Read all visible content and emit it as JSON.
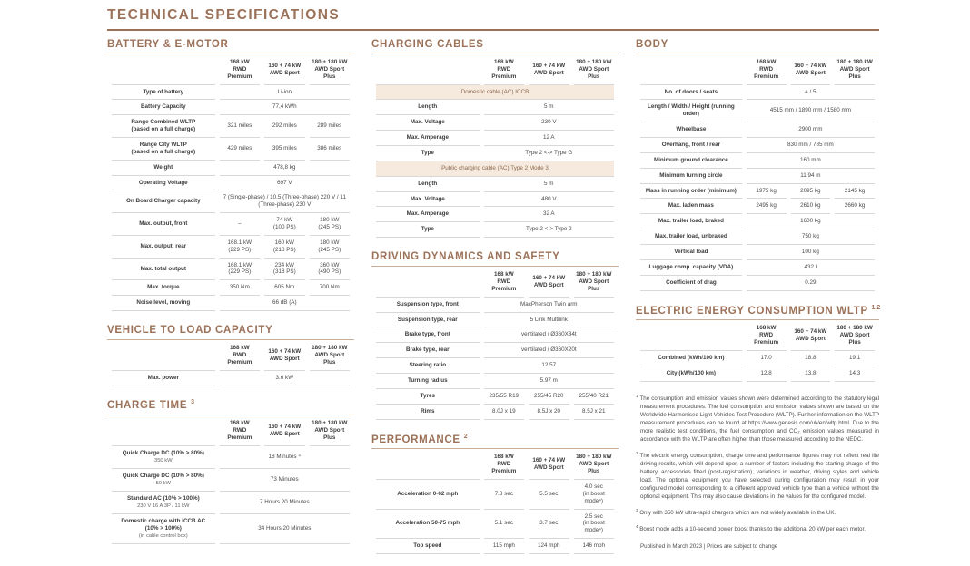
{
  "title": "TECHNICAL SPECIFICATIONS",
  "theme": {
    "accent": "#9b7259",
    "band_background": "#f6e9dd",
    "band_text": "#8c6a51",
    "row_line": "#d8d8d8"
  },
  "model_columns": [
    "168 kW\nRWD Premium",
    "160 + 74 kW\nAWD Sport",
    "180 + 180 kW\nAWD Sport Plus"
  ],
  "layout": {
    "columns": [
      [
        "battery",
        "vehicle_to_load",
        "charge_time"
      ],
      [
        "charging_cables",
        "driving_dynamics",
        "performance"
      ],
      [
        "body",
        "energy_consumption",
        "footnotes"
      ]
    ]
  },
  "sections": {
    "battery": {
      "id": "battery",
      "heading": "BATTERY & E-MOTOR",
      "show_header": true,
      "rows": [
        {
          "label": "Type of battery",
          "span": "Li-ion"
        },
        {
          "label": "Battery Capacity",
          "span": "77,4 kWh"
        },
        {
          "label": "Range Combined WLTP\n(based on a full charge)",
          "values": [
            "321 miles",
            "292 miles",
            "289 miles"
          ]
        },
        {
          "label": "Range City WLTP\n(based on a full charge)",
          "values": [
            "429 miles",
            "395 miles",
            "386 miles"
          ]
        },
        {
          "label": "Weight",
          "span": "478,8 kg"
        },
        {
          "label": "Operating Voltage",
          "span": "697 V"
        },
        {
          "label": "On Board Charger capacity",
          "span": "7 (Single-phase) / 10.5 (Three-phase) 220 V / 11 (Three-phase) 230 V"
        },
        {
          "label": "Max. output, front",
          "values": [
            "–",
            "74 kW\n(100 PS)",
            "180 kW\n(245 PS)"
          ]
        },
        {
          "label": "Max. output, rear",
          "values": [
            "168.1 kW\n(229 PS)",
            "160 kW\n(218 PS)",
            "180 kW\n(245 PS)"
          ]
        },
        {
          "label": "Max. total output",
          "values": [
            "168.1 kW\n(229 PS)",
            "234 kW\n(318 PS)",
            "360 kW\n(490 PS)"
          ]
        },
        {
          "label": "Max. torque",
          "values": [
            "350 Nm",
            "605 Nm",
            "700 Nm"
          ]
        },
        {
          "label": "Noise level, moving",
          "span": "66 dB (A)"
        }
      ]
    },
    "vehicle_to_load": {
      "id": "vehicle-to-load",
      "heading": "VEHICLE TO LOAD CAPACITY",
      "show_header": true,
      "rows": [
        {
          "label": "Max. power",
          "span": "3.6 kW"
        }
      ]
    },
    "charge_time": {
      "id": "charge-time",
      "heading": "CHARGE TIME",
      "heading_sup": "3",
      "show_header": true,
      "rows": [
        {
          "label": "Quick Charge DC (10% > 80%)",
          "sub": "350 kW",
          "span": "18 Minutes ⁴"
        },
        {
          "label": "Quick Charge DC (10% > 80%)",
          "sub": "50 kW",
          "span": "73 Minutes"
        },
        {
          "label": "Standard AC (10% > 100%)",
          "sub": "230 V 16 A 3P / 11 kW",
          "span": "7 Hours 20 Minutes"
        },
        {
          "label": "Domestic charge with ICCB AC\n(10% > 100%)",
          "sub": "(in cable control box)",
          "span": "34 Hours 20 Minutes"
        }
      ]
    },
    "charging_cables": {
      "id": "charging-cables",
      "heading": "CHARGING CABLES",
      "show_header": true,
      "rows": [
        {
          "band": "Domestic cable (AC) ICCB"
        },
        {
          "label": "Length",
          "span": "5 m"
        },
        {
          "label": "Max. Voltage",
          "span": "230 V"
        },
        {
          "label": "Max. Amperage",
          "span": "12 A"
        },
        {
          "label": "Type",
          "span": "Type 2 <-> Type G"
        },
        {
          "band": "Public charging cable (AC) Type 2 Mode 3"
        },
        {
          "label": "Length",
          "span": "5 m"
        },
        {
          "label": "Max. Voltage",
          "span": "480 V"
        },
        {
          "label": "Max. Amperage",
          "span": "32 A"
        },
        {
          "label": "Type",
          "span": "Type 2 <-> Type 2"
        }
      ]
    },
    "driving_dynamics": {
      "id": "driving-dynamics",
      "heading": "DRIVING DYNAMICS AND SAFETY",
      "show_header": true,
      "rows": [
        {
          "label": "Suspension type, front",
          "span": "MacPherson Twin arm"
        },
        {
          "label": "Suspension type, rear",
          "span": "5 Link Multilink"
        },
        {
          "label": "Brake type, front",
          "span": "ventilated / Ø360X34t"
        },
        {
          "label": "Brake type, rear",
          "span": "ventilated / Ø360X20t"
        },
        {
          "label": "Steering ratio",
          "span": "12.57"
        },
        {
          "label": "Turning radius",
          "span": "5.97 m"
        },
        {
          "label": "Tyres",
          "values": [
            "235/55 R19",
            "255/45 R20",
            "255/40 R21"
          ]
        },
        {
          "label": "Rims",
          "values": [
            "8.0J x 19",
            "8.5J x 20",
            "8.5J x 21"
          ]
        }
      ]
    },
    "performance": {
      "id": "performance",
      "heading": "PERFORMANCE",
      "heading_sup": "2",
      "show_header": true,
      "rows": [
        {
          "label": "Acceleration 0-62 mph",
          "values": [
            "7.8 sec",
            "5.5 sec",
            "4.0 sec\n(in boost mode⁴)"
          ]
        },
        {
          "label": "Acceleration 50-75 mph",
          "values": [
            "5.1 sec",
            "3.7 sec",
            "2.5 sec\n(in boost mode⁴)"
          ]
        },
        {
          "label": "Top speed",
          "values": [
            "115 mph",
            "124 mph",
            "146 mph"
          ]
        }
      ]
    },
    "body": {
      "id": "body",
      "heading": "BODY",
      "show_header": true,
      "rows": [
        {
          "label": "No. of doors / seats",
          "span": "4 / 5"
        },
        {
          "label": "Length / Width / Height (running order)",
          "span": "4515 mm / 1890 mm / 1580 mm"
        },
        {
          "label": "Wheelbase",
          "span": "2900 mm"
        },
        {
          "label": "Overhang, front / rear",
          "span": "830 mm / 785 mm"
        },
        {
          "label": "Minimum ground clearance",
          "span": "160 mm"
        },
        {
          "label": "Minimum turning circle",
          "span": "11.94 m"
        },
        {
          "label": "Mass in running order (minimum)",
          "values": [
            "1975 kg",
            "2095 kg",
            "2145 kg"
          ]
        },
        {
          "label": "Max. laden mass",
          "values": [
            "2495 kg",
            "2610 kg",
            "2660 kg"
          ]
        },
        {
          "label": "Max. trailer load, braked",
          "span": "1600 kg"
        },
        {
          "label": "Max. trailer load, unbraked",
          "span": "750 kg"
        },
        {
          "label": "Vertical load",
          "span": "100 kg"
        },
        {
          "label": "Luggage comp. capacity (VDA)",
          "span": "432 l"
        },
        {
          "label": "Coefficient of drag",
          "span": "0.29"
        }
      ]
    },
    "energy_consumption": {
      "id": "energy-consumption",
      "heading": "ELECTRIC ENERGY CONSUMPTION WLTP",
      "heading_sup": "1,2",
      "show_header": true,
      "rows": [
        {
          "label": "Combined (kWh/100 km)",
          "values": [
            "17.0",
            "18.8",
            "19.1"
          ]
        },
        {
          "label": "City (kWh/100 km)",
          "values": [
            "12.8",
            "13.8",
            "14.3"
          ]
        }
      ]
    }
  },
  "footnotes": {
    "items": [
      {
        "marker": "1",
        "text": "The consumption and emission values shown were determined according to the statutory legal measurement procedures. The fuel consumption and emission values shown are based on the Worldwide Harmonised Light Vehicles Test Procedure (WLTP). Further information on the WLTP measurement procedures can be found at https://www.genesis.com/uk/en/wltp.html. Due to the more realistic test conditions, the fuel consumption and CO₂ emission values measured in accordance with the WLTP are often higher than those measured according to the NEDC."
      },
      {
        "marker": "2",
        "text": "The electric energy consumption, charge time and performance figures may not reflect real life driving results, which will depend upon a number of factors including the starting charge of the battery, accessories fitted (post-registration), variations in weather, driving styles and vehicle load. The optional equipment you have selected during configuration may result in your configured model corresponding to a different approved vehicle type than a vehicle without the optional equipment. This may also cause deviations in the values for the configured model."
      },
      {
        "marker": "3",
        "text": "Only with 350 kW ultra-rapid chargers which are not widely available in the UK."
      },
      {
        "marker": "4",
        "text": "Boost mode adds a 10-second power boost thanks to the additional 20 kW per each motor."
      }
    ],
    "published": "Published in March 2023 | Prices are subject to change"
  }
}
